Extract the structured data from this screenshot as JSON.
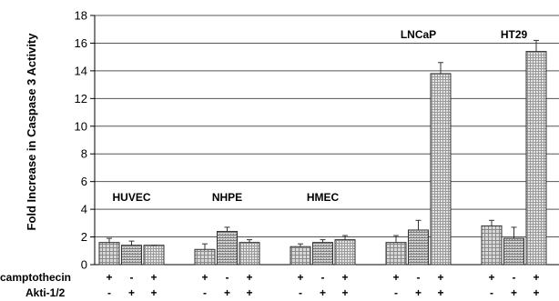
{
  "chart_data": {
    "type": "bar",
    "ylabel": "Fold Increase in Caspase 3 Activity",
    "ylim": [
      0,
      18
    ],
    "yticks": [
      0,
      2,
      4,
      6,
      8,
      10,
      12,
      14,
      16,
      18
    ],
    "grid": true,
    "groups": [
      {
        "name": "HUVEC",
        "values": [
          1.6,
          1.4,
          1.4
        ],
        "errors": [
          0.3,
          0.3,
          0.0
        ]
      },
      {
        "name": "NHPE",
        "values": [
          1.1,
          2.4,
          1.6
        ],
        "errors": [
          0.4,
          0.3,
          0.2
        ]
      },
      {
        "name": "HMEC",
        "values": [
          1.3,
          1.6,
          1.8
        ],
        "errors": [
          0.2,
          0.2,
          0.3
        ]
      },
      {
        "name": "LNCaP",
        "values": [
          1.6,
          2.5,
          13.8
        ],
        "errors": [
          0.5,
          0.7,
          0.8
        ]
      },
      {
        "name": "HT29",
        "values": [
          2.8,
          1.9,
          15.4
        ],
        "errors": [
          0.4,
          0.8,
          0.8
        ]
      }
    ],
    "conditions": [
      {
        "label": "camptothecin",
        "signs": [
          "+",
          "-",
          "+"
        ]
      },
      {
        "label": "Akti-1/2",
        "signs": [
          "-",
          "+",
          "+"
        ]
      }
    ]
  }
}
